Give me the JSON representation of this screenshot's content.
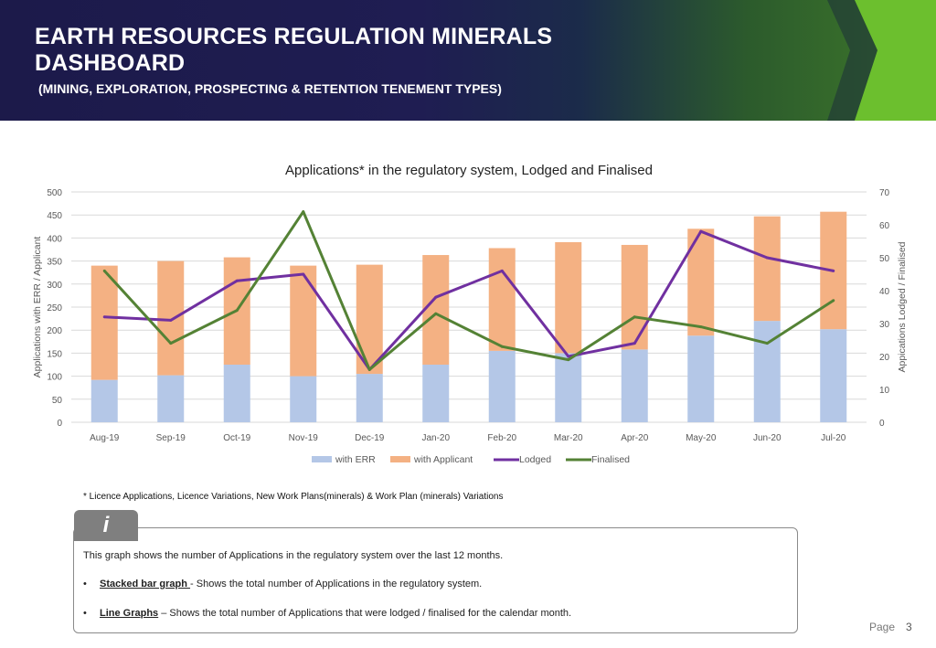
{
  "header": {
    "title_line1": "EARTH RESOURCES REGULATION MINERALS",
    "title_line2": "DASHBOARD",
    "subtitle": "(MINING, EXPLORATION, PROSPECTING & RETENTION TENEMENT TYPES)"
  },
  "colors": {
    "with_err": "#b4c7e7",
    "with_applicant": "#f4b183",
    "lodged": "#7030a0",
    "finalised": "#548235",
    "header_green": "#6cbf2e"
  },
  "chart_data": {
    "type": "bar",
    "title": "Applications* in the regulatory system, Lodged and Finalised",
    "categories": [
      "Aug-19",
      "Sep-19",
      "Oct-19",
      "Nov-19",
      "Dec-19",
      "Jan-20",
      "Feb-20",
      "Mar-20",
      "Apr-20",
      "May-20",
      "Jun-20",
      "Jul-20"
    ],
    "ylabel": "Applications with ERR / Applicant",
    "y2label": "Appications Lodged / Finalised",
    "ylim": [
      0,
      500
    ],
    "y2lim": [
      0,
      70
    ],
    "yticks": [
      "0",
      "50",
      "100",
      "150",
      "200",
      "250",
      "300",
      "350",
      "400",
      "450",
      "500"
    ],
    "y2ticks": [
      "0",
      "10",
      "20",
      "30",
      "40",
      "50",
      "60",
      "70"
    ],
    "series": [
      {
        "name": "with ERR",
        "kind": "bar",
        "axis": "left",
        "values": [
          92,
          102,
          125,
          100,
          105,
          125,
          155,
          150,
          158,
          188,
          220,
          202
        ]
      },
      {
        "name": "with Applicant",
        "kind": "bar",
        "axis": "left",
        "values": [
          248,
          248,
          233,
          240,
          237,
          238,
          223,
          241,
          227,
          232,
          227,
          255
        ]
      },
      {
        "name": "Lodged",
        "kind": "line",
        "axis": "right",
        "values": [
          32,
          31,
          43,
          45,
          16,
          38,
          46,
          20,
          24,
          58,
          50,
          46
        ]
      },
      {
        "name": "Finalised",
        "kind": "line",
        "axis": "right",
        "values": [
          46,
          24,
          34,
          64,
          16,
          33,
          23,
          19,
          32,
          29,
          24,
          37
        ]
      }
    ],
    "legend": [
      "with ERR",
      "with Applicant",
      "Lodged",
      "Finalised"
    ]
  },
  "footnote": "* Licence Applications, Licence Variations, New Work Plans(minerals) & Work Plan (minerals) Variations",
  "info": {
    "icon": "i",
    "line1": "This graph shows the number of Applications in the regulatory system over the last 12 months.",
    "bullet1_term": "Stacked bar graph ",
    "bullet1_text": "-  Shows the total number of Applications in the regulatory system.",
    "bullet2_term": "Line Graphs",
    "bullet2_text": " – Shows the total number of  Applications that were lodged / finalised for the calendar month."
  },
  "page": {
    "label": "Page",
    "number": "3"
  }
}
